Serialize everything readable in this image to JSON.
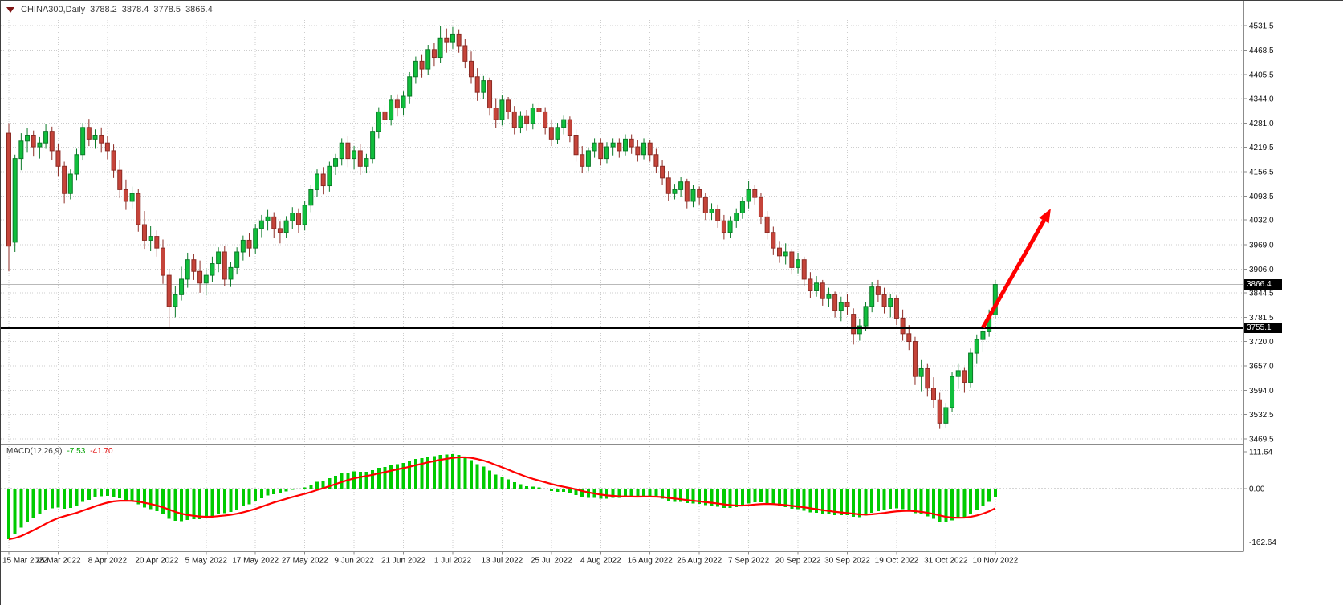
{
  "colors": {
    "up": "#10BE3C",
    "up_border": "#0B7A28",
    "down": "#C5443A",
    "down_border": "#8C2B24",
    "grid": "#CDCDCD",
    "axis_line": "#8C8C8C",
    "macd_hist": "#00CB00",
    "macd_signal": "#FF0000",
    "current_price_line": "#B9B9B9",
    "support": "#000000",
    "arrow": "#FF0000",
    "badge_bg": "#000000",
    "badge_fg": "#FFFFFF"
  },
  "annotations": {
    "current_price": {
      "price": 3866.4,
      "label": "3866.4"
    },
    "support_line": {
      "price": 3755.1,
      "label": "3755.1"
    },
    "trend_arrow": {
      "from_bar": 158,
      "from_price": 3756,
      "to_bar": 169,
      "to_price": 4061
    }
  },
  "chart_data": [
    {
      "type": "candlestick",
      "title": "CHINA300,Daily",
      "legend": {
        "open": "3788.2",
        "high": "3878.4",
        "low": "3778.5",
        "close": "3866.4"
      },
      "current_price": 3866.4,
      "y_axis": {
        "ticks": [
          "4531.5",
          "4468.5",
          "4405.5",
          "4344.0",
          "4281.0",
          "4219.5",
          "4156.5",
          "4093.5",
          "4032.0",
          "3969.0",
          "3906.0",
          "3844.5",
          "3781.5",
          "3720.0",
          "3657.0",
          "3594.0",
          "3532.5",
          "3469.5"
        ],
        "min": 3469.5,
        "max": 4531.5
      },
      "x_label_every": 8,
      "x_labels": [
        "15 Mar 2022",
        "25 Mar 2022",
        "8 Apr 2022",
        "20 Apr 2022",
        "5 May 2022",
        "17 May 2022",
        "27 May 2022",
        "9 Jun 2022",
        "21 Jun 2022",
        "1 Jul 2022",
        "13 Jul 2022",
        "25 Jul 2022",
        "4 Aug 2022",
        "16 Aug 2022",
        "26 Aug 2022",
        "7 Sep 2022",
        "20 Sep 2022",
        "30 Sep 2022",
        "19 Oct 2022",
        "31 Oct 2022",
        "10 Nov 2022"
      ],
      "grid": true,
      "ohlc": [
        [
          4255,
          4281,
          3900,
          3965
        ],
        [
          3975,
          4200,
          3950,
          4190
        ],
        [
          4190,
          4255,
          4160,
          4235
        ],
        [
          4235,
          4268,
          4205,
          4250
        ],
        [
          4250,
          4262,
          4195,
          4220
        ],
        [
          4220,
          4245,
          4190,
          4230
        ],
        [
          4230,
          4278,
          4215,
          4260
        ],
        [
          4260,
          4272,
          4185,
          4210
        ],
        [
          4210,
          4228,
          4145,
          4170
        ],
        [
          4170,
          4182,
          4075,
          4100
        ],
        [
          4100,
          4162,
          4085,
          4150
        ],
        [
          4150,
          4215,
          4135,
          4200
        ],
        [
          4200,
          4282,
          4185,
          4270
        ],
        [
          4270,
          4292,
          4222,
          4240
        ],
        [
          4240,
          4265,
          4215,
          4250
        ],
        [
          4250,
          4270,
          4205,
          4230
        ],
        [
          4230,
          4248,
          4188,
          4210
        ],
        [
          4210,
          4226,
          4140,
          4160
        ],
        [
          4160,
          4185,
          4088,
          4110
        ],
        [
          4110,
          4136,
          4058,
          4080
        ],
        [
          4080,
          4118,
          4062,
          4100
        ],
        [
          4100,
          4112,
          4002,
          4020
        ],
        [
          4020,
          4055,
          3958,
          3980
        ],
        [
          3980,
          4016,
          3952,
          3990
        ],
        [
          3990,
          4005,
          3938,
          3960
        ],
        [
          3960,
          3982,
          3868,
          3890
        ],
        [
          3890,
          3905,
          3757,
          3810
        ],
        [
          3810,
          3862,
          3782,
          3840
        ],
        [
          3840,
          3912,
          3825,
          3880
        ],
        [
          3880,
          3948,
          3858,
          3930
        ],
        [
          3930,
          3945,
          3878,
          3900
        ],
        [
          3900,
          3928,
          3845,
          3870
        ],
        [
          3870,
          3908,
          3838,
          3890
        ],
        [
          3890,
          3938,
          3872,
          3920
        ],
        [
          3920,
          3962,
          3898,
          3950
        ],
        [
          3950,
          3965,
          3862,
          3880
        ],
        [
          3880,
          3925,
          3860,
          3910
        ],
        [
          3910,
          3962,
          3892,
          3950
        ],
        [
          3950,
          3992,
          3928,
          3980
        ],
        [
          3980,
          3998,
          3938,
          3960
        ],
        [
          3960,
          4022,
          3945,
          4010
        ],
        [
          4010,
          4045,
          3988,
          4030
        ],
        [
          4030,
          4058,
          4005,
          4040
        ],
        [
          4040,
          4052,
          3985,
          4010
        ],
        [
          4010,
          4028,
          3972,
          4000
        ],
        [
          4000,
          4042,
          3985,
          4030
        ],
        [
          4030,
          4065,
          4008,
          4050
        ],
        [
          4050,
          4062,
          3998,
          4020
        ],
        [
          4020,
          4082,
          4005,
          4070
        ],
        [
          4070,
          4122,
          4052,
          4110
        ],
        [
          4110,
          4162,
          4092,
          4150
        ],
        [
          4150,
          4168,
          4098,
          4120
        ],
        [
          4120,
          4182,
          4105,
          4170
        ],
        [
          4170,
          4202,
          4148,
          4190
        ],
        [
          4190,
          4242,
          4172,
          4230
        ],
        [
          4230,
          4248,
          4168,
          4190
        ],
        [
          4190,
          4222,
          4162,
          4210
        ],
        [
          4210,
          4228,
          4148,
          4170
        ],
        [
          4170,
          4202,
          4152,
          4190
        ],
        [
          4190,
          4272,
          4178,
          4260
        ],
        [
          4260,
          4322,
          4242,
          4310
        ],
        [
          4310,
          4328,
          4268,
          4290
        ],
        [
          4290,
          4352,
          4275,
          4340
        ],
        [
          4340,
          4355,
          4298,
          4320
        ],
        [
          4320,
          4362,
          4302,
          4350
        ],
        [
          4350,
          4412,
          4332,
          4400
        ],
        [
          4400,
          4452,
          4382,
          4440
        ],
        [
          4440,
          4458,
          4398,
          4420
        ],
        [
          4420,
          4482,
          4405,
          4470
        ],
        [
          4470,
          4488,
          4428,
          4450
        ],
        [
          4450,
          4531.5,
          4435,
          4500
        ],
        [
          4500,
          4524,
          4462,
          4490
        ],
        [
          4490,
          4528,
          4472,
          4510
        ],
        [
          4510,
          4522,
          4462,
          4480
        ],
        [
          4480,
          4498,
          4422,
          4440
        ],
        [
          4440,
          4465,
          4382,
          4400
        ],
        [
          4400,
          4422,
          4338,
          4360
        ],
        [
          4360,
          4402,
          4342,
          4390
        ],
        [
          4390,
          4398,
          4302,
          4320
        ],
        [
          4320,
          4345,
          4268,
          4290
        ],
        [
          4290,
          4352,
          4275,
          4340
        ],
        [
          4340,
          4348,
          4292,
          4310
        ],
        [
          4310,
          4325,
          4252,
          4270
        ],
        [
          4270,
          4312,
          4255,
          4300
        ],
        [
          4300,
          4315,
          4262,
          4280
        ],
        [
          4280,
          4332,
          4265,
          4320
        ],
        [
          4320,
          4335,
          4292,
          4310
        ],
        [
          4310,
          4322,
          4252,
          4270
        ],
        [
          4270,
          4288,
          4222,
          4240
        ],
        [
          4240,
          4282,
          4228,
          4270
        ],
        [
          4270,
          4302,
          4252,
          4290
        ],
        [
          4290,
          4298,
          4232,
          4250
        ],
        [
          4250,
          4265,
          4182,
          4200
        ],
        [
          4200,
          4222,
          4152,
          4170
        ],
        [
          4170,
          4218,
          4158,
          4210
        ],
        [
          4210,
          4242,
          4192,
          4230
        ],
        [
          4230,
          4242,
          4172,
          4190
        ],
        [
          4190,
          4232,
          4178,
          4220
        ],
        [
          4220,
          4242,
          4198,
          4230
        ],
        [
          4230,
          4242,
          4192,
          4210
        ],
        [
          4210,
          4252,
          4198,
          4240
        ],
        [
          4240,
          4252,
          4202,
          4220
        ],
        [
          4220,
          4238,
          4182,
          4200
        ],
        [
          4200,
          4242,
          4188,
          4230
        ],
        [
          4230,
          4238,
          4182,
          4200
        ],
        [
          4200,
          4215,
          4152,
          4170
        ],
        [
          4170,
          4185,
          4122,
          4140
        ],
        [
          4140,
          4158,
          4082,
          4100
        ],
        [
          4100,
          4125,
          4085,
          4110
        ],
        [
          4110,
          4142,
          4092,
          4130
        ],
        [
          4130,
          4138,
          4062,
          4080
        ],
        [
          4080,
          4122,
          4065,
          4110
        ],
        [
          4110,
          4118,
          4072,
          4090
        ],
        [
          4090,
          4102,
          4032,
          4050
        ],
        [
          4050,
          4075,
          4032,
          4060
        ],
        [
          4060,
          4072,
          4012,
          4030
        ],
        [
          4030,
          4045,
          3982,
          4000
        ],
        [
          4000,
          4042,
          3985,
          4030
        ],
        [
          4030,
          4062,
          4012,
          4050
        ],
        [
          4050,
          4092,
          4035,
          4080
        ],
        [
          4080,
          4132,
          4062,
          4110
        ],
        [
          4110,
          4122,
          4072,
          4090
        ],
        [
          4090,
          4102,
          4022,
          4040
        ],
        [
          4040,
          4055,
          3982,
          4000
        ],
        [
          4000,
          4015,
          3942,
          3960
        ],
        [
          3960,
          3978,
          3922,
          3940
        ],
        [
          3940,
          3972,
          3918,
          3950
        ],
        [
          3950,
          3958,
          3892,
          3910
        ],
        [
          3910,
          3948,
          3895,
          3930
        ],
        [
          3930,
          3938,
          3862,
          3880
        ],
        [
          3880,
          3898,
          3832,
          3850
        ],
        [
          3850,
          3888,
          3835,
          3870
        ],
        [
          3870,
          3878,
          3812,
          3830
        ],
        [
          3830,
          3858,
          3808,
          3840
        ],
        [
          3840,
          3848,
          3782,
          3800
        ],
        [
          3800,
          3835,
          3772,
          3820
        ],
        [
          3820,
          3842,
          3788,
          3810
        ],
        [
          3790,
          3805,
          3712,
          3740
        ],
        [
          3740,
          3778,
          3722,
          3760
        ],
        [
          3760,
          3822,
          3748,
          3810
        ],
        [
          3810,
          3872,
          3795,
          3860
        ],
        [
          3860,
          3878,
          3822,
          3840
        ],
        [
          3840,
          3858,
          3792,
          3810
        ],
        [
          3810,
          3842,
          3782,
          3830
        ],
        [
          3830,
          3838,
          3762,
          3780
        ],
        [
          3780,
          3802,
          3722,
          3740
        ],
        [
          3740,
          3762,
          3698,
          3720
        ],
        [
          3720,
          3732,
          3608,
          3630
        ],
        [
          3630,
          3672,
          3592,
          3650
        ],
        [
          3650,
          3662,
          3578,
          3600
        ],
        [
          3600,
          3628,
          3548,
          3570
        ],
        [
          3570,
          3588,
          3495,
          3510
        ],
        [
          3510,
          3562,
          3498,
          3550
        ],
        [
          3550,
          3642,
          3538,
          3630
        ],
        [
          3630,
          3662,
          3598,
          3645
        ],
        [
          3645,
          3652,
          3588,
          3615
        ],
        [
          3615,
          3702,
          3602,
          3690
        ],
        [
          3690,
          3738,
          3662,
          3725
        ],
        [
          3725,
          3758,
          3692,
          3745
        ],
        [
          3745,
          3802,
          3732,
          3788
        ],
        [
          3788.2,
          3878.4,
          3778.5,
          3866.4
        ]
      ]
    },
    {
      "type": "macd",
      "label": "MACD(12,26,9)",
      "params": [
        12,
        26,
        9
      ],
      "macd_value_label": "-7.53",
      "signal_value_label": "-41.70",
      "axis_labels": [
        {
          "label": "111.64",
          "value": 111.64
        },
        {
          "label": "0.00",
          "value": 0
        },
        {
          "label": "-162.64",
          "value": -162.64
        }
      ],
      "ema12_seed": 4150,
      "ema26_seed": 4300,
      "source": "closes of main candlestick series"
    }
  ]
}
